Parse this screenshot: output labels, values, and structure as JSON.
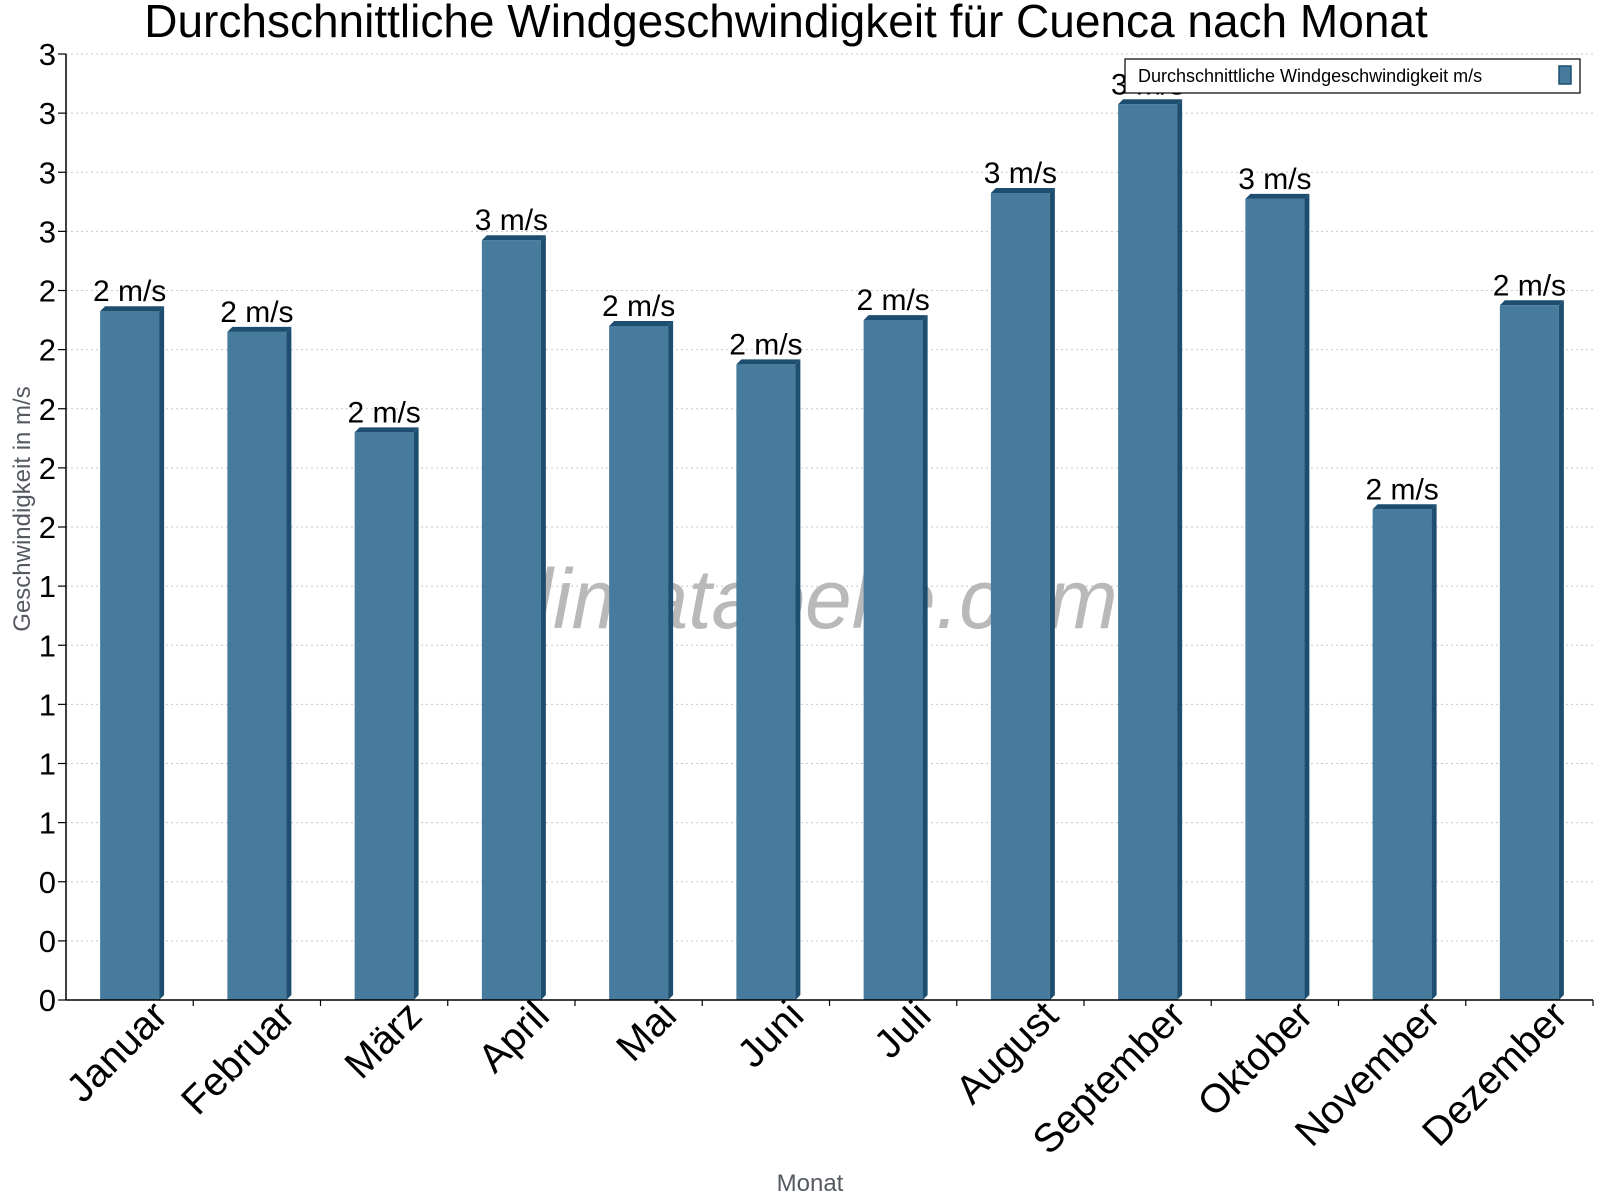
{
  "chart_data": {
    "type": "bar",
    "title": "Durchschnittliche Windgeschwindigkeit für Cuenca nach Monat",
    "xlabel": "Monat",
    "ylabel": "Geschwindigkeit in m/s",
    "categories": [
      "Januar",
      "Februar",
      "März",
      "April",
      "Mai",
      "Juni",
      "Juli",
      "August",
      "September",
      "Oktober",
      "November",
      "Dezember"
    ],
    "series": [
      {
        "name": "Durchschnittliche Windgeschwindigkeit m/s",
        "values": [
          2.33,
          2.26,
          1.92,
          2.57,
          2.28,
          2.15,
          2.3,
          2.73,
          3.03,
          2.71,
          1.66,
          2.35
        ],
        "labels": [
          "2 m/s",
          "2 m/s",
          "2 m/s",
          "3 m/s",
          "2 m/s",
          "2 m/s",
          "2 m/s",
          "3 m/s",
          "3 m/s",
          "3 m/s",
          "2 m/s",
          "2 m/s"
        ],
        "color": "#467b9d",
        "side_color": "#1d4e70"
      }
    ],
    "ylim": [
      0,
      3.2
    ],
    "yticks": [
      0,
      0.2,
      0.4,
      0.6,
      0.8,
      1.0,
      1.2,
      1.4,
      1.6,
      1.8,
      2.0,
      2.2,
      2.4,
      2.6,
      2.8,
      3.0,
      3.2
    ],
    "ytick_labels": [
      "0",
      "0",
      "0",
      "1",
      "1",
      "1",
      "1",
      "1",
      "2",
      "2",
      "2",
      "2",
      "2",
      "3",
      "3",
      "3",
      "3"
    ],
    "grid": true,
    "legend": "top-right",
    "watermark": "klimatabelle.com"
  }
}
